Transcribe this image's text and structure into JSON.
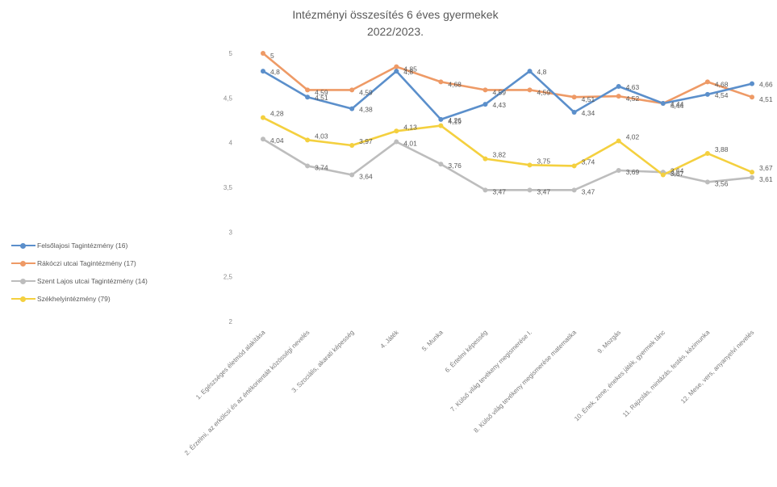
{
  "chart_data": {
    "type": "line",
    "title_line1": "Intézményi összesítés 6 éves gyermekek",
    "title_line2": "2022/2023.",
    "ylim": [
      2,
      5
    ],
    "yticks": [
      "2",
      "2,5",
      "3",
      "3,5",
      "4",
      "4,5",
      "5"
    ],
    "grid": false,
    "legend_position": "left",
    "categories": [
      "1. Egészséges életmód alakítása",
      "2. Érzelmi, az erkölcsi és az értékorientált közösségi nevelés",
      "3. Szociális, akarati képesség",
      "4. Játék",
      "5. Munka",
      "6. Értelmi képesség",
      "7. Külső világ tevékeny megismerése I.",
      "8. Külső világ tevékeny megismerése matematika",
      "9. Mozgás",
      "10. Ének, zene, énekes játék, gyermek tánc",
      "11. Rajzolás, mintázás, festés, kézimunka",
      "12. Mese, vers, anyanyelvi nevelés"
    ],
    "series": [
      {
        "name": "Felsőlajosi Tagintézmény (16)",
        "color": "#5B8FCB",
        "values": [
          4.8,
          4.51,
          4.38,
          4.8,
          4.26,
          4.43,
          4.8,
          4.34,
          4.63,
          4.44,
          4.54,
          4.66
        ],
        "labels": [
          "4,8",
          "4,51",
          "4,38",
          "4,8",
          "4,26",
          "4,43",
          "4,8",
          "4,34",
          "4,63",
          "4,44",
          "4,54",
          "4,66"
        ]
      },
      {
        "name": "Rákóczi utcai Tagintézmény (17)",
        "color": "#EE9A66",
        "values": [
          5,
          4.59,
          4.59,
          4.85,
          4.68,
          4.59,
          4.59,
          4.51,
          4.52,
          4.44,
          4.68,
          4.51
        ],
        "labels": [
          "5",
          "4,59",
          "4,59",
          "4,85",
          "4,68",
          "4,59",
          "4,59",
          "4,51",
          "4,52",
          "4,44",
          "4,68",
          "4,51"
        ]
      },
      {
        "name": "Szent Lajos utcai Tagintézmény (14)",
        "color": "#BDBDBD",
        "values": [
          4.04,
          3.74,
          3.64,
          4.01,
          3.76,
          3.47,
          3.47,
          3.47,
          3.69,
          3.67,
          3.56,
          3.61
        ],
        "labels": [
          "4,04",
          "3,74",
          "3,64",
          "4,01",
          "3,76",
          "3,47",
          "3,47",
          "3,47",
          "3,69",
          "3,67",
          "3,56",
          "3,61"
        ]
      },
      {
        "name": "Székhelyintézmény (79)",
        "color": "#F4D03F",
        "values": [
          4.28,
          4.03,
          3.97,
          4.13,
          4.19,
          3.82,
          3.75,
          3.74,
          4.02,
          3.64,
          3.88,
          3.67
        ],
        "labels": [
          "4,28",
          "4,03",
          "3,97",
          "4,13",
          "4,19",
          "3,82",
          "3,75",
          "3,74",
          "4,02",
          "3,64",
          "3,88",
          "3,67"
        ]
      }
    ]
  }
}
